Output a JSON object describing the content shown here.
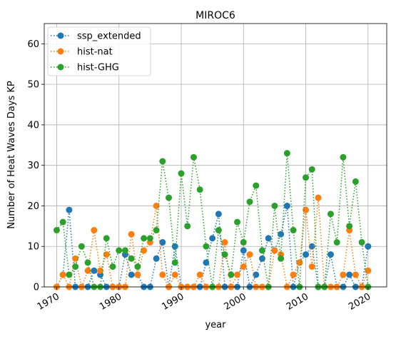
{
  "chart_data": {
    "type": "line",
    "title": "MIROC6",
    "xlabel": "year",
    "ylabel": "Number of Heat Waves Days KP",
    "xlim": [
      1968,
      2023
    ],
    "ylim": [
      0,
      65
    ],
    "xticks": [
      1970,
      1980,
      1990,
      2000,
      2010,
      2020
    ],
    "yticks": [
      0,
      10,
      20,
      30,
      40,
      50,
      60
    ],
    "grid": true,
    "legend_position": "top-left",
    "x": [
      1970,
      1971,
      1972,
      1973,
      1974,
      1975,
      1976,
      1977,
      1978,
      1979,
      1980,
      1981,
      1982,
      1983,
      1984,
      1985,
      1986,
      1987,
      1988,
      1989,
      1990,
      1991,
      1992,
      1993,
      1994,
      1995,
      1996,
      1997,
      1998,
      1999,
      2000,
      2001,
      2002,
      2003,
      2004,
      2005,
      2006,
      2007,
      2008,
      2009,
      2010,
      2011,
      2012,
      2013,
      2014,
      2015,
      2016,
      2017,
      2018,
      2019,
      2020
    ],
    "series": [
      {
        "name": "ssp_extended",
        "color": "#1f77b4",
        "values": [
          0,
          3,
          19,
          0,
          0,
          0,
          4,
          3,
          0,
          0,
          0,
          8,
          3,
          3,
          0,
          0,
          7,
          11,
          0,
          10,
          0,
          0,
          0,
          0,
          6,
          12,
          18,
          0,
          0,
          0,
          9,
          0,
          3,
          7,
          12,
          9,
          13,
          20,
          0,
          6,
          8,
          10,
          0,
          0,
          8,
          0,
          0,
          3,
          0,
          0,
          10
        ]
      },
      {
        "name": "hist-nat",
        "color": "#ff7f0e",
        "values": [
          0,
          3,
          0,
          7,
          0,
          4,
          14,
          4,
          8,
          0,
          0,
          0,
          13,
          3,
          9,
          11,
          20,
          3,
          0,
          3,
          0,
          0,
          0,
          3,
          0,
          0,
          0,
          11,
          0,
          3,
          5,
          8,
          0,
          0,
          0,
          9,
          8,
          0,
          3,
          6,
          19,
          5,
          22,
          0,
          0,
          0,
          3,
          14,
          3,
          0,
          4
        ]
      },
      {
        "name": "hist-GHG",
        "color": "#2ca02c",
        "values": [
          14,
          16,
          3,
          5,
          10,
          6,
          0,
          0,
          12,
          5,
          9,
          9,
          7,
          5,
          12,
          12,
          14,
          31,
          22,
          6,
          28,
          15,
          32,
          24,
          10,
          0,
          14,
          8,
          3,
          16,
          11,
          21,
          25,
          9,
          0,
          20,
          7,
          33,
          14,
          0,
          27,
          29,
          0,
          0,
          18,
          11,
          32,
          15,
          26,
          11,
          0
        ]
      }
    ]
  }
}
